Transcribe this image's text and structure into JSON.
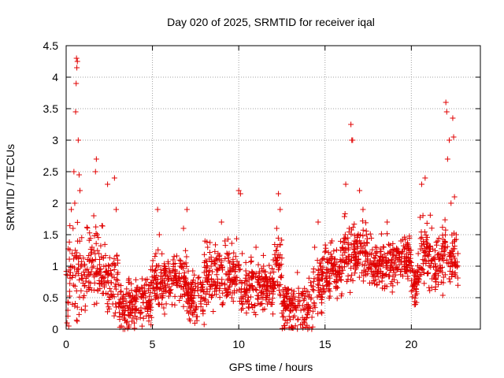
{
  "chart_data": {
    "type": "scatter",
    "title": "Day 020 of 2025, SRMTID for receiver iqal",
    "xlabel": "GPS time / hours",
    "ylabel": "SRMTID / TECUs",
    "xlim": [
      0,
      24
    ],
    "ylim": [
      0,
      4.5
    ],
    "xticks": [
      0,
      5,
      10,
      15,
      20
    ],
    "xtick_labels": [
      "0",
      "5",
      "10",
      "15",
      "20"
    ],
    "yticks": [
      0,
      0.5,
      1,
      1.5,
      2,
      2.5,
      3,
      3.5,
      4,
      4.5
    ],
    "ytick_labels": [
      "0",
      "0.5",
      "1",
      "1.5",
      "2",
      "2.5",
      "3",
      "3.5",
      "4",
      "4.5"
    ],
    "grid": true,
    "marker": "plus",
    "color": "#e00000",
    "data_range_hours": [
      0,
      22.7
    ],
    "series": [
      {
        "name": "SRMTID",
        "points": [
          [
            0.05,
            0.1
          ],
          [
            0.1,
            0.3
          ],
          [
            0.15,
            0.05
          ],
          [
            0.2,
            0.6
          ],
          [
            0.25,
            0.9
          ],
          [
            0.3,
            1.9
          ],
          [
            0.35,
            1.2
          ],
          [
            0.4,
            1.6
          ],
          [
            0.45,
            2.5
          ],
          [
            0.5,
            2.0
          ],
          [
            0.55,
            3.45
          ],
          [
            0.58,
            3.9
          ],
          [
            0.6,
            4.3
          ],
          [
            0.62,
            4.15
          ],
          [
            0.65,
            4.25
          ],
          [
            0.7,
            3.0
          ],
          [
            0.75,
            2.45
          ],
          [
            0.8,
            2.2
          ],
          [
            0.85,
            1.0
          ],
          [
            0.9,
            0.8
          ],
          [
            1.0,
            0.5
          ],
          [
            1.1,
            0.3
          ],
          [
            1.2,
            0.6
          ],
          [
            1.3,
            0.9
          ],
          [
            1.4,
            1.1
          ],
          [
            1.5,
            1.3
          ],
          [
            1.6,
            1.8
          ],
          [
            1.7,
            2.5
          ],
          [
            1.75,
            2.7
          ],
          [
            1.8,
            1.5
          ],
          [
            1.9,
            1.2
          ],
          [
            2.0,
            0.9
          ],
          [
            2.2,
            0.7
          ],
          [
            2.4,
            2.3
          ],
          [
            2.5,
            1.0
          ],
          [
            2.6,
            0.6
          ],
          [
            2.7,
            0.4
          ],
          [
            2.8,
            2.4
          ],
          [
            2.9,
            1.9
          ],
          [
            3.0,
            0.9
          ],
          [
            3.1,
            0.2
          ],
          [
            3.2,
            0.05
          ],
          [
            3.3,
            0.0
          ],
          [
            3.4,
            0.0
          ],
          [
            3.5,
            0.1
          ],
          [
            3.6,
            0.3
          ],
          [
            3.8,
            0.5
          ],
          [
            4.0,
            0.3
          ],
          [
            4.2,
            0.6
          ],
          [
            4.4,
            0.8
          ],
          [
            4.6,
            0.5
          ],
          [
            4.8,
            0.7
          ],
          [
            5.0,
            1.0
          ],
          [
            5.2,
            1.2
          ],
          [
            5.3,
            1.9
          ],
          [
            5.4,
            1.5
          ],
          [
            5.6,
            0.8
          ],
          [
            5.8,
            0.6
          ],
          [
            6.0,
            0.9
          ],
          [
            6.2,
            1.1
          ],
          [
            6.4,
            0.7
          ],
          [
            6.6,
            1.0
          ],
          [
            6.8,
            1.6
          ],
          [
            7.0,
            1.9
          ],
          [
            7.2,
            0.6
          ],
          [
            7.4,
            0.3
          ],
          [
            7.6,
            0.2
          ],
          [
            7.8,
            0.5
          ],
          [
            8.0,
            0.9
          ],
          [
            8.2,
            1.3
          ],
          [
            8.4,
            1.0
          ],
          [
            8.6,
            0.6
          ],
          [
            8.8,
            1.2
          ],
          [
            9.0,
            1.7
          ],
          [
            9.2,
            1.4
          ],
          [
            9.4,
            0.8
          ],
          [
            9.6,
            0.5
          ],
          [
            9.8,
            1.0
          ],
          [
            10.0,
            2.2
          ],
          [
            10.1,
            2.15
          ],
          [
            10.2,
            1.2
          ],
          [
            10.4,
            0.6
          ],
          [
            10.6,
            0.4
          ],
          [
            10.8,
            0.9
          ],
          [
            11.0,
            1.3
          ],
          [
            11.2,
            0.7
          ],
          [
            11.4,
            0.5
          ],
          [
            11.6,
            0.6
          ],
          [
            11.8,
            0.8
          ],
          [
            12.0,
            1.1
          ],
          [
            12.2,
            1.6
          ],
          [
            12.3,
            2.15
          ],
          [
            12.4,
            1.9
          ],
          [
            12.5,
            0.4
          ],
          [
            12.6,
            0.2
          ],
          [
            12.8,
            0.1
          ],
          [
            13.0,
            0.3
          ],
          [
            13.2,
            0.6
          ],
          [
            13.4,
            0.9
          ],
          [
            13.6,
            0.3
          ],
          [
            13.8,
            0.1
          ],
          [
            14.0,
            0.0
          ],
          [
            14.2,
            0.5
          ],
          [
            14.4,
            1.3
          ],
          [
            14.6,
            1.7
          ],
          [
            14.8,
            0.8
          ],
          [
            15.0,
            0.6
          ],
          [
            15.2,
            1.1
          ],
          [
            15.4,
            1.4
          ],
          [
            15.6,
            1.0
          ],
          [
            15.8,
            0.9
          ],
          [
            16.0,
            1.3
          ],
          [
            16.2,
            2.3
          ],
          [
            16.4,
            1.6
          ],
          [
            16.5,
            3.25
          ],
          [
            16.55,
            3.0
          ],
          [
            16.6,
            3.0
          ],
          [
            16.7,
            1.4
          ],
          [
            16.8,
            1.1
          ],
          [
            17.0,
            2.2
          ],
          [
            17.2,
            1.9
          ],
          [
            17.4,
            1.5
          ],
          [
            17.6,
            1.2
          ],
          [
            17.8,
            0.9
          ],
          [
            18.0,
            0.7
          ],
          [
            18.2,
            1.0
          ],
          [
            18.4,
            1.3
          ],
          [
            18.6,
            1.7
          ],
          [
            18.8,
            1.2
          ],
          [
            19.0,
            0.9
          ],
          [
            19.2,
            1.1
          ],
          [
            19.4,
            1.4
          ],
          [
            19.6,
            1.0
          ],
          [
            19.8,
            0.8
          ],
          [
            20.0,
            0.6
          ],
          [
            20.2,
            0.9
          ],
          [
            20.4,
            1.2
          ],
          [
            20.6,
            2.3
          ],
          [
            20.8,
            2.4
          ],
          [
            21.0,
            1.3
          ],
          [
            21.2,
            0.8
          ],
          [
            21.4,
            1.0
          ],
          [
            21.6,
            1.2
          ],
          [
            21.8,
            0.9
          ],
          [
            22.0,
            3.6
          ],
          [
            22.05,
            3.45
          ],
          [
            22.1,
            2.7
          ],
          [
            22.2,
            3.0
          ],
          [
            22.3,
            2.0
          ],
          [
            22.4,
            3.35
          ],
          [
            22.45,
            3.05
          ],
          [
            22.5,
            2.1
          ],
          [
            22.55,
            1.0
          ],
          [
            22.6,
            1.5
          ],
          [
            22.7,
            1.2
          ]
        ],
        "cloud": [
          {
            "x0": 0.0,
            "x1": 1.0,
            "mean": 0.9,
            "spread": 0.6,
            "count": 60
          },
          {
            "x0": 1.0,
            "x1": 2.2,
            "mean": 1.0,
            "spread": 0.55,
            "count": 90
          },
          {
            "x0": 2.2,
            "x1": 3.0,
            "mean": 0.7,
            "spread": 0.5,
            "count": 60
          },
          {
            "x0": 3.0,
            "x1": 3.6,
            "mean": 0.35,
            "spread": 0.35,
            "count": 45
          },
          {
            "x0": 3.6,
            "x1": 5.0,
            "mean": 0.45,
            "spread": 0.4,
            "count": 120
          },
          {
            "x0": 5.0,
            "x1": 7.0,
            "mean": 0.75,
            "spread": 0.4,
            "count": 170
          },
          {
            "x0": 7.0,
            "x1": 8.0,
            "mean": 0.5,
            "spread": 0.4,
            "count": 90
          },
          {
            "x0": 8.0,
            "x1": 10.0,
            "mean": 0.85,
            "spread": 0.45,
            "count": 170
          },
          {
            "x0": 10.0,
            "x1": 12.0,
            "mean": 0.7,
            "spread": 0.4,
            "count": 170
          },
          {
            "x0": 12.0,
            "x1": 12.5,
            "mean": 1.0,
            "spread": 0.5,
            "count": 45
          },
          {
            "x0": 12.5,
            "x1": 14.3,
            "mean": 0.35,
            "spread": 0.35,
            "count": 140
          },
          {
            "x0": 14.3,
            "x1": 15.0,
            "mean": 0.75,
            "spread": 0.45,
            "count": 55
          },
          {
            "x0": 15.0,
            "x1": 16.0,
            "mean": 0.9,
            "spread": 0.4,
            "count": 90
          },
          {
            "x0": 16.0,
            "x1": 17.5,
            "mean": 1.2,
            "spread": 0.45,
            "count": 130
          },
          {
            "x0": 17.5,
            "x1": 19.0,
            "mean": 1.0,
            "spread": 0.4,
            "count": 130
          },
          {
            "x0": 19.0,
            "x1": 20.0,
            "mean": 1.1,
            "spread": 0.3,
            "count": 90
          },
          {
            "x0": 20.0,
            "x1": 20.5,
            "mean": 0.7,
            "spread": 0.3,
            "count": 45
          },
          {
            "x0": 20.5,
            "x1": 21.2,
            "mean": 1.2,
            "spread": 0.5,
            "count": 60
          },
          {
            "x0": 21.2,
            "x1": 22.7,
            "mean": 1.1,
            "spread": 0.45,
            "count": 120
          }
        ]
      }
    ]
  }
}
